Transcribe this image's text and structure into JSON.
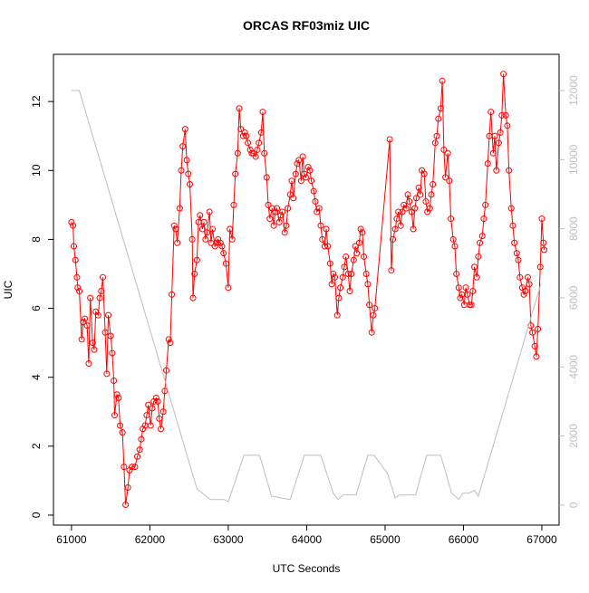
{
  "chart_data": {
    "type": "line",
    "title": "ORCAS RF03miz UIC",
    "xlabel": "UTC Seconds",
    "ylabel": "UIC",
    "xlim": [
      60770,
      67220
    ],
    "ylim": [
      -0.29,
      13.37
    ],
    "y2lim": [
      -580,
      13050
    ],
    "xticks": [
      61000,
      62000,
      63000,
      64000,
      65000,
      66000,
      67000
    ],
    "yticks": [
      0,
      2,
      4,
      6,
      8,
      10,
      12
    ],
    "y2ticks": [
      0,
      2000,
      4000,
      6000,
      8000,
      10000,
      12000
    ],
    "y2tick_color": "#bebebe",
    "series": [
      {
        "color": "#ff0000",
        "marker": "circle",
        "x": [
          61000,
          61020,
          61030,
          61050,
          61070,
          61080,
          61100,
          61130,
          61150,
          61170,
          61200,
          61220,
          61240,
          61270,
          61290,
          61310,
          61340,
          61360,
          61380,
          61400,
          61430,
          61450,
          61470,
          61500,
          61520,
          61540,
          61550,
          61580,
          61600,
          61620,
          61650,
          61670,
          61690,
          61720,
          61740,
          61770,
          61810,
          61840,
          61870,
          61890,
          61910,
          61940,
          61960,
          61980,
          62010,
          62030,
          62050,
          62080,
          62100,
          62120,
          62140,
          62170,
          62190,
          62210,
          62240,
          62260,
          62280,
          62310,
          62330,
          62350,
          62380,
          62400,
          62420,
          62450,
          62470,
          62490,
          62510,
          62540,
          62550,
          62570,
          62600,
          62620,
          62640,
          62670,
          62690,
          62710,
          62730,
          62760,
          62780,
          62800,
          62830,
          62850,
          62870,
          62900,
          62920,
          62940,
          62970,
          63000,
          63020,
          63050,
          63070,
          63090,
          63120,
          63140,
          63160,
          63190,
          63210,
          63230,
          63250,
          63280,
          63300,
          63320,
          63350,
          63370,
          63390,
          63420,
          63440,
          63460,
          63490,
          63510,
          63530,
          63560,
          63580,
          63600,
          63620,
          63650,
          63670,
          63690,
          63720,
          63740,
          63760,
          63790,
          63810,
          63830,
          63860,
          63880,
          63900,
          63930,
          63950,
          63970,
          63990,
          64020,
          64040,
          64060,
          64090,
          64110,
          64130,
          64160,
          64180,
          64200,
          64230,
          64250,
          64270,
          64300,
          64320,
          64340,
          64360,
          64390,
          64410,
          64430,
          64460,
          64480,
          64500,
          64530,
          64550,
          64570,
          64600,
          64620,
          64640,
          64670,
          64690,
          64710,
          64730,
          64760,
          64780,
          64800,
          64830,
          64850,
          64870,
          65060,
          65080,
          65100,
          65130,
          65150,
          65170,
          65200,
          65220,
          65240,
          65270,
          65290,
          65310,
          65340,
          65360,
          65380,
          65400,
          65430,
          65450,
          65470,
          65500,
          65520,
          65540,
          65570,
          65590,
          65610,
          65640,
          65660,
          65680,
          65710,
          65730,
          65750,
          65770,
          65800,
          65820,
          65840,
          65870,
          65890,
          65910,
          65940,
          65960,
          65980,
          66010,
          66030,
          66050,
          66080,
          66100,
          66120,
          66140,
          66170,
          66190,
          66210,
          66240,
          66260,
          66280,
          66310,
          66330,
          66350,
          66380,
          66400,
          66420,
          66450,
          66470,
          66490,
          66510,
          66540,
          66560,
          66580,
          66610,
          66630,
          66650,
          66680,
          66700,
          66720,
          66750,
          66770,
          66790,
          66820,
          66840,
          66860,
          66880,
          66910,
          66930,
          66950,
          66980,
          67000,
          67020,
          67030
        ],
        "values": [
          8.5,
          8.4,
          7.8,
          7.4,
          6.9,
          6.6,
          6.5,
          5.1,
          5.6,
          5.7,
          5.5,
          4.4,
          6.3,
          5.0,
          4.8,
          5.9,
          5.8,
          6.3,
          6.5,
          6.9,
          5.3,
          4.1,
          5.8,
          5.2,
          4.7,
          3.9,
          2.9,
          3.5,
          3.4,
          2.6,
          2.4,
          1.4,
          0.3,
          0.8,
          1.3,
          1.4,
          1.4,
          1.7,
          1.9,
          2.2,
          2.5,
          2.6,
          2.9,
          3.2,
          2.6,
          3.1,
          3.3,
          3.4,
          3.3,
          2.8,
          2.5,
          3.0,
          3.6,
          4.2,
          5.1,
          5.0,
          6.4,
          8.4,
          8.3,
          7.9,
          8.9,
          10.0,
          10.7,
          11.2,
          10.3,
          9.9,
          9.6,
          8.0,
          6.3,
          7.0,
          7.4,
          8.5,
          8.7,
          8.3,
          8.5,
          8.0,
          8.2,
          8.8,
          7.9,
          8.3,
          7.8,
          7.9,
          8.0,
          7.9,
          7.8,
          7.6,
          7.3,
          6.6,
          8.3,
          8.0,
          9.0,
          9.9,
          10.5,
          11.8,
          11.2,
          11.0,
          11.1,
          11.0,
          10.8,
          10.6,
          10.5,
          10.5,
          10.4,
          10.6,
          10.8,
          11.1,
          11.7,
          10.5,
          9.8,
          9.0,
          8.6,
          8.9,
          8.4,
          8.8,
          8.9,
          8.5,
          8.7,
          8.8,
          8.2,
          8.4,
          8.9,
          9.3,
          9.7,
          9.2,
          9.9,
          10.2,
          10.3,
          9.7,
          10.4,
          9.9,
          9.8,
          10.1,
          10.0,
          9.7,
          9.4,
          9.1,
          8.8,
          8.9,
          8.4,
          8.0,
          7.8,
          8.3,
          7.8,
          7.3,
          6.7,
          7.0,
          6.9,
          5.8,
          6.3,
          6.6,
          6.9,
          7.2,
          7.5,
          7.0,
          6.5,
          7.0,
          7.4,
          7.8,
          7.6,
          7.9,
          8.3,
          8.2,
          7.5,
          7.0,
          6.7,
          6.1,
          5.3,
          5.8,
          6.0,
          10.9,
          7.1,
          8.0,
          8.3,
          8.6,
          8.8,
          8.4,
          8.8,
          9.0,
          8.9,
          9.3,
          9.1,
          8.8,
          8.3,
          8.9,
          9.2,
          9.5,
          9.3,
          10.0,
          9.9,
          9.1,
          8.8,
          8.9,
          9.3,
          9.6,
          10.8,
          11.0,
          11.5,
          11.8,
          12.6,
          10.6,
          9.8,
          10.5,
          9.7,
          8.6,
          8.0,
          7.8,
          7.0,
          6.6,
          6.3,
          6.4,
          6.1,
          6.6,
          6.4,
          6.1,
          6.1,
          6.5,
          7.2,
          6.9,
          7.5,
          7.9,
          8.1,
          8.6,
          9.0,
          10.2,
          11.0,
          11.7,
          10.5,
          11.0,
          10.0,
          10.8,
          11.1,
          11.6,
          12.8,
          11.6,
          11.3,
          10.0,
          8.9,
          8.4,
          7.9,
          7.6,
          7.4,
          6.9,
          6.6,
          6.4,
          6.5,
          6.9,
          6.7,
          5.5,
          5.3,
          4.9,
          4.6,
          5.4,
          7.2,
          8.6,
          7.9,
          7.7
        ]
      },
      {
        "color": "#bebebe",
        "axis": "y2",
        "x": [
          61000,
          61100,
          62600,
          62770,
          62950,
          63000,
          63200,
          63400,
          63550,
          63790,
          63970,
          64180,
          64340,
          64400,
          64460,
          64630,
          64780,
          64860,
          65030,
          65130,
          65180,
          65390,
          65530,
          65710,
          65850,
          65940,
          65990,
          66060,
          66140,
          66190,
          66990
        ],
        "values": [
          12000,
          12000,
          470,
          160,
          160,
          100,
          1440,
          1440,
          260,
          160,
          1440,
          1440,
          340,
          160,
          290,
          290,
          1440,
          1440,
          920,
          210,
          290,
          290,
          1440,
          1440,
          340,
          160,
          340,
          340,
          420,
          260,
          6420
        ]
      }
    ]
  }
}
